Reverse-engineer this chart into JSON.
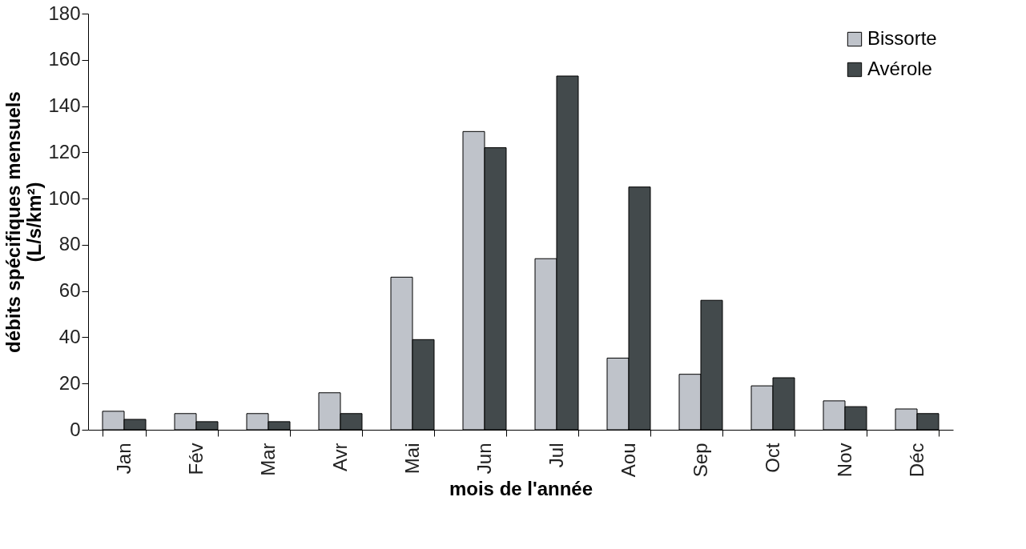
{
  "chart_data": {
    "type": "bar",
    "xlabel": "mois de l'année",
    "ylabel": "débits spécifiques mensuels (L/s/km²)",
    "categories": [
      "Jan",
      "Fév",
      "Mar",
      "Avr",
      "Mai",
      "Jun",
      "Jul",
      "Aou",
      "Sep",
      "Oct",
      "Nov",
      "Déc"
    ],
    "series": [
      {
        "name": "Bissorte",
        "color": "#bfc3ca",
        "values": [
          8,
          7,
          7,
          16,
          66,
          129,
          74,
          31,
          24,
          19,
          12.5,
          9
        ]
      },
      {
        "name": "Avérole",
        "color": "#434a4c",
        "values": [
          4.5,
          3.5,
          3.5,
          7,
          39,
          122,
          153,
          105,
          56,
          22.5,
          10,
          7
        ]
      }
    ],
    "ylim": [
      0,
      180
    ],
    "yticks": [
      0,
      20,
      40,
      60,
      80,
      100,
      120,
      140,
      160,
      180
    ],
    "grid": false,
    "legend": "top right"
  }
}
